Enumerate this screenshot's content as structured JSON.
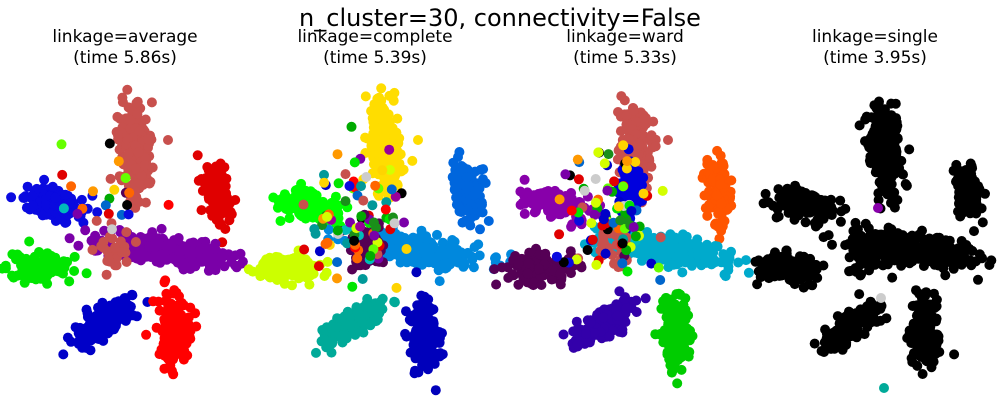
{
  "figure": {
    "suptitle": "n_cluster=30, connectivity=False"
  },
  "palette": [
    "#c8504d",
    "#0a0ae0",
    "#e00000",
    "#00e600",
    "#7a00a8",
    "#0000c8",
    "#ff0000",
    "#1a8f1a",
    "#00aa00",
    "#ffd400",
    "#000000",
    "#cccccc",
    "#ff6600",
    "#0066cc",
    "#66ff00",
    "#00bbbb",
    "#d4ff00",
    "#550055",
    "#990099",
    "#ff9900",
    "#009999"
  ],
  "chart_data": [
    {
      "type": "scatter",
      "title": "linkage=average",
      "subtitle": "(time 5.86s)",
      "clusters": [
        {
          "color": "#c8504d",
          "label": "top-stem"
        },
        {
          "color": "#0a0ae0",
          "label": "upper-left-blob"
        },
        {
          "color": "#e00000",
          "label": "upper-right-blob"
        },
        {
          "color": "#00e600",
          "label": "left-blob"
        },
        {
          "color": "#7a00a8",
          "label": "center-arms"
        },
        {
          "color": "#0000c8",
          "label": "lower-left-blob"
        },
        {
          "color": "#ff0000",
          "label": "bottom-center-blob"
        }
      ]
    },
    {
      "type": "scatter",
      "title": "linkage=complete",
      "subtitle": "(time 5.39s)",
      "clusters": [
        {
          "color": "#ffdd00",
          "label": "top-stem"
        },
        {
          "color": "#00ff00",
          "label": "upper-left-blob"
        },
        {
          "color": "#0066dd",
          "label": "upper-right-blob"
        },
        {
          "color": "#ccff00",
          "label": "left-blob"
        },
        {
          "color": "#0088dd",
          "label": "center-arms"
        },
        {
          "color": "#00aa99",
          "label": "lower-left-blob"
        },
        {
          "color": "#0000bb",
          "label": "bottom-center-blob"
        },
        {
          "color": "#550055",
          "label": "center-left"
        }
      ]
    },
    {
      "type": "scatter",
      "title": "linkage=ward",
      "subtitle": "(time 5.33s)",
      "clusters": [
        {
          "color": "#c8504d",
          "label": "top-stem"
        },
        {
          "color": "#8800aa",
          "label": "upper-left-blob"
        },
        {
          "color": "#ff5500",
          "label": "upper-right-blob"
        },
        {
          "color": "#550055",
          "label": "left-blob"
        },
        {
          "color": "#00aacc",
          "label": "center-arms"
        },
        {
          "color": "#3300aa",
          "label": "lower-left-blob"
        },
        {
          "color": "#00cc00",
          "label": "bottom-center-blob"
        },
        {
          "color": "#0000dd",
          "label": "stem-middle"
        }
      ]
    },
    {
      "type": "scatter",
      "title": "linkage=single",
      "subtitle": "(time 3.95s)",
      "clusters": [
        {
          "color": "#000000",
          "label": "all-points"
        }
      ]
    }
  ]
}
